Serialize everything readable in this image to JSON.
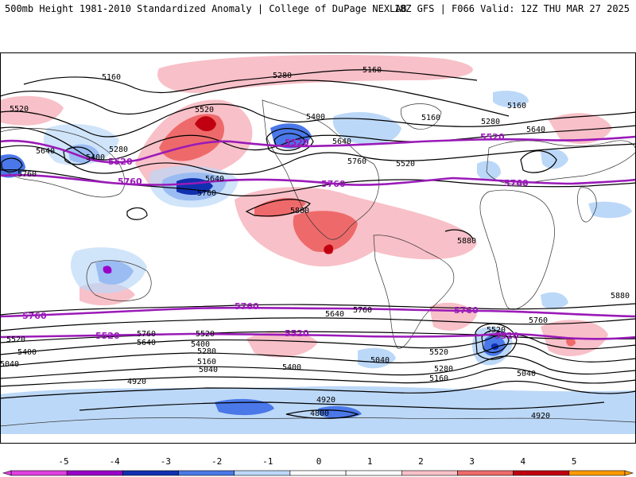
{
  "header": {
    "left": "500mb Height 1981-2010 Standardized Anomaly | College of DuPage NEXLAB",
    "right": "18Z GFS | F066 Valid: 12Z THU MAR 27 2025"
  },
  "colorbar": {
    "ticks": [
      "-5",
      "-4",
      "-3",
      "-2",
      "-1",
      "0",
      "1",
      "2",
      "3",
      "4",
      "5"
    ],
    "colors": [
      "#e040e0",
      "#9a00c8",
      "#1030b0",
      "#4a78e8",
      "#bcd8f8",
      "#ffffff",
      "#ffffff",
      "#f8c0c8",
      "#ee6a6a",
      "#c00010",
      "#ff9a00"
    ]
  },
  "contour_labels": {
    "black": [
      "5160",
      "5280",
      "5160",
      "5520",
      "5640",
      "5400",
      "5280",
      "5520",
      "5160",
      "5400",
      "5280",
      "5160",
      "5640",
      "5640",
      "5760",
      "5520",
      "5640",
      "5760",
      "5760",
      "5880",
      "5880",
      "5880",
      "5760",
      "5640",
      "5400",
      "5760",
      "5520",
      "5520",
      "5640",
      "5400",
      "5280",
      "5160",
      "5040",
      "5040",
      "5400",
      "5040",
      "5520",
      "5280",
      "5160",
      "5040",
      "4920",
      "4920",
      "4800",
      "4920",
      "5520",
      "5760"
    ],
    "purple": [
      "5520",
      "5760",
      "5520",
      "5760",
      "5520",
      "5760",
      "5760",
      "5760",
      "5760",
      "5520",
      "5520",
      "5520"
    ]
  },
  "style": {
    "thickness_line_color": "#9a1ab8",
    "contour_color": "#000000",
    "coast_color": "#333333"
  }
}
